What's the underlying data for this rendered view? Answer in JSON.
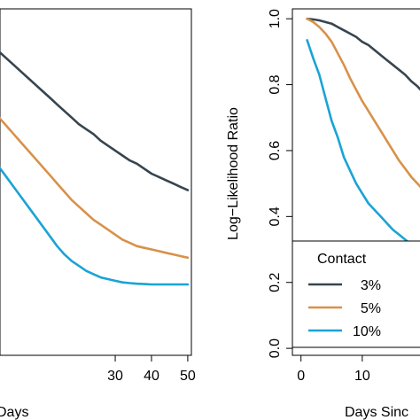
{
  "chart_data": [
    {
      "type": "line",
      "title": "",
      "xlabel": "Days",
      "ylabel": "",
      "xlim": [
        -2.5,
        51
      ],
      "ylim": [
        -0.04,
        1.03
      ],
      "x_ticks": [
        30,
        40,
        50
      ],
      "series": [
        {
          "name": "3%",
          "color": "#36454f",
          "x": [
            -2,
            0,
            2,
            4,
            6,
            8,
            10,
            12,
            14,
            16,
            18,
            20,
            22,
            24,
            26,
            28,
            30,
            32,
            34,
            36,
            38,
            40,
            42,
            44,
            46,
            48,
            50
          ],
          "y": [
            0.9,
            0.88,
            0.86,
            0.84,
            0.82,
            0.8,
            0.78,
            0.76,
            0.74,
            0.72,
            0.7,
            0.68,
            0.665,
            0.65,
            0.63,
            0.615,
            0.6,
            0.585,
            0.57,
            0.56,
            0.545,
            0.53,
            0.52,
            0.51,
            0.5,
            0.49,
            0.48
          ]
        },
        {
          "name": "5%",
          "color": "#d8914a",
          "x": [
            -2,
            0,
            2,
            4,
            6,
            8,
            10,
            12,
            14,
            16,
            18,
            20,
            22,
            24,
            26,
            28,
            30,
            32,
            34,
            36,
            38,
            40,
            42,
            44,
            46,
            48,
            50
          ],
          "y": [
            0.7,
            0.675,
            0.65,
            0.625,
            0.6,
            0.575,
            0.55,
            0.525,
            0.5,
            0.475,
            0.45,
            0.43,
            0.41,
            0.39,
            0.375,
            0.36,
            0.345,
            0.33,
            0.32,
            0.31,
            0.305,
            0.3,
            0.295,
            0.29,
            0.285,
            0.28,
            0.275
          ]
        },
        {
          "name": "10%",
          "color": "#1aa3d6",
          "x": [
            -2,
            0,
            2,
            4,
            6,
            8,
            10,
            12,
            14,
            16,
            18,
            20,
            22,
            24,
            26,
            28,
            30,
            32,
            34,
            36,
            38,
            40,
            42,
            44,
            46,
            48,
            50
          ],
          "y": [
            0.55,
            0.52,
            0.49,
            0.46,
            0.43,
            0.4,
            0.37,
            0.34,
            0.31,
            0.285,
            0.265,
            0.25,
            0.235,
            0.225,
            0.215,
            0.21,
            0.205,
            0.2,
            0.198,
            0.196,
            0.195,
            0.194,
            0.194,
            0.194,
            0.194,
            0.194,
            0.194
          ]
        }
      ]
    },
    {
      "type": "line",
      "title": "",
      "xlabel": "Days Sinc",
      "ylabel": "Log−Likelihood Ratio",
      "xlim": [
        -1.4,
        20
      ],
      "ylim": [
        -0.04,
        1.03
      ],
      "x_ticks": [
        0,
        10
      ],
      "y_ticks": [
        0.0,
        0.2,
        0.4,
        0.6,
        0.8,
        1.0
      ],
      "y_tick_labels": [
        "0.0",
        "0.2",
        "0.4",
        "0.6",
        "0.8",
        "1.0"
      ],
      "legend": {
        "title": "Contact",
        "position": "bottom-left"
      },
      "series": [
        {
          "name": "3%",
          "color": "#36454f",
          "x": [
            1,
            2,
            3,
            4,
            5,
            6,
            7,
            8,
            9,
            10,
            11,
            12,
            13,
            14,
            15,
            16,
            17,
            18,
            19,
            20
          ],
          "y": [
            1.0,
            0.998,
            0.995,
            0.99,
            0.985,
            0.975,
            0.965,
            0.955,
            0.945,
            0.93,
            0.92,
            0.905,
            0.89,
            0.875,
            0.86,
            0.845,
            0.83,
            0.81,
            0.795,
            0.775
          ]
        },
        {
          "name": "5%",
          "color": "#d8914a",
          "x": [
            1,
            2,
            3,
            4,
            5,
            6,
            7,
            8,
            9,
            10,
            11,
            12,
            13,
            14,
            15,
            16,
            17,
            18,
            19,
            20
          ],
          "y": [
            1.0,
            0.99,
            0.975,
            0.955,
            0.93,
            0.895,
            0.86,
            0.82,
            0.785,
            0.75,
            0.72,
            0.69,
            0.66,
            0.63,
            0.6,
            0.57,
            0.545,
            0.52,
            0.5,
            0.48
          ]
        },
        {
          "name": "10%",
          "color": "#1aa3d6",
          "x": [
            1,
            2,
            3,
            4,
            5,
            6,
            7,
            8,
            9,
            10,
            11,
            12,
            13,
            14,
            15,
            16,
            17,
            18,
            19,
            20
          ],
          "y": [
            0.935,
            0.88,
            0.83,
            0.76,
            0.69,
            0.64,
            0.58,
            0.54,
            0.5,
            0.47,
            0.44,
            0.42,
            0.4,
            0.38,
            0.36,
            0.345,
            0.33,
            0.315,
            0.3,
            0.29
          ]
        }
      ]
    }
  ]
}
